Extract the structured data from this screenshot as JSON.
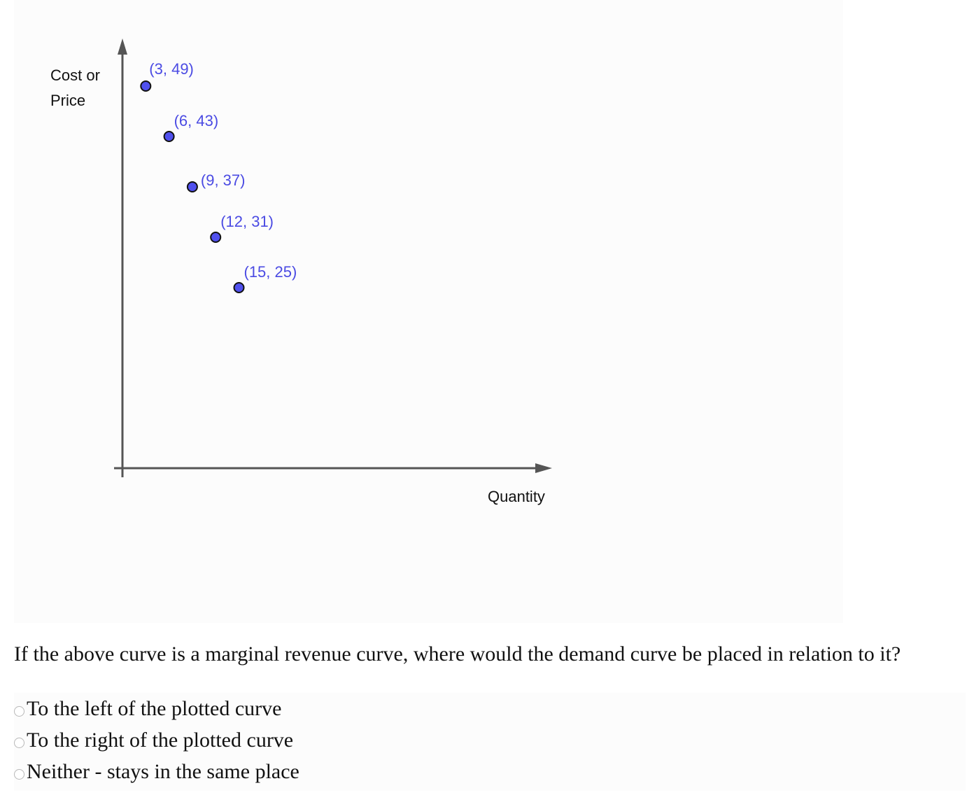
{
  "chart_data": {
    "type": "scatter",
    "ylabel_lines": [
      "Cost or",
      "Price"
    ],
    "xlabel": "Quantity",
    "points": [
      {
        "x": 3,
        "y": 49,
        "label": "(3, 49)"
      },
      {
        "x": 6,
        "y": 43,
        "label": "(6, 43)"
      },
      {
        "x": 9,
        "y": 37,
        "label": "(9, 37)"
      },
      {
        "x": 12,
        "y": 31,
        "label": "(12, 31)"
      },
      {
        "x": 15,
        "y": 25,
        "label": "(15, 25)"
      }
    ],
    "point_color": "#5050ee",
    "grid": false
  },
  "question": {
    "text": "If the above curve is a marginal revenue curve, where would the demand curve be placed in relation to it?",
    "options": [
      "To the left of the plotted curve",
      "To the right of the plotted curve",
      "Neither - stays in the same place"
    ]
  }
}
